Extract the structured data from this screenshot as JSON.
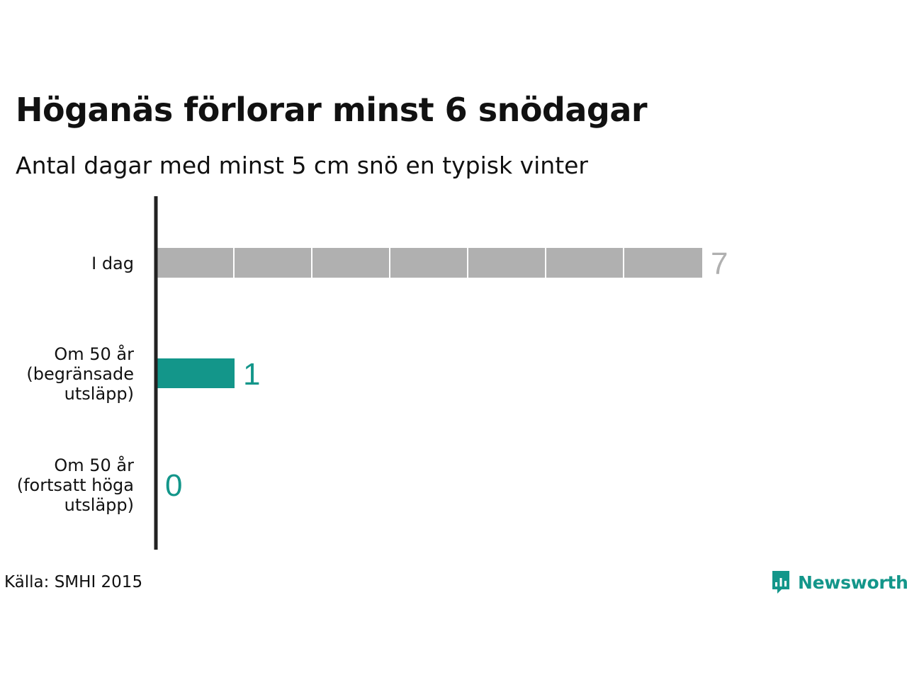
{
  "chart_data": {
    "type": "bar",
    "orientation": "horizontal",
    "title": "Höganäs förlorar minst 6 snödagar",
    "subtitle": "Antal dagar med minst 5 cm snö en typisk vinter",
    "categories": [
      "I dag",
      "Om 50 år\n(begränsade\nutsläpp)",
      "Om 50 år\n(fortsatt höga\nutsläpp)"
    ],
    "values": [
      7,
      1,
      0
    ],
    "value_labels": [
      "7",
      "1",
      "0"
    ],
    "xlim": [
      0,
      7
    ],
    "grid": false,
    "legend": "none",
    "colors": {
      "today": "#b0b0b0",
      "future": "#13968a",
      "axis": "#222222"
    }
  },
  "source": "Källa: SMHI 2015",
  "brand": {
    "name": "Newsworthy",
    "icon": "newsworthy-logo-icon",
    "color": "#13968a"
  }
}
